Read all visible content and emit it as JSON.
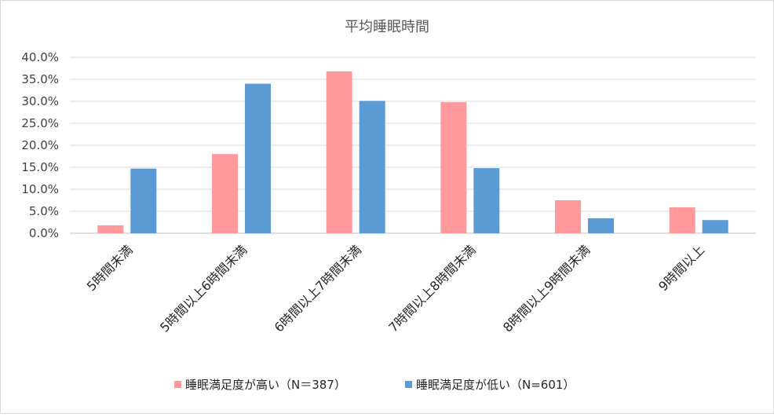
{
  "chart_data": {
    "type": "bar",
    "title": "平均睡眠時間",
    "categories": [
      "5時間未満",
      "5時間以上6時間未満",
      "6時間以上7時間未満",
      "7時間以上8時間未満",
      "8時間以上9時間未満",
      "9時間以上"
    ],
    "series": [
      {
        "name": "睡眠満足度が高い（N＝387）",
        "color": "#ff999c",
        "values": [
          1.8,
          18.0,
          36.8,
          29.8,
          7.5,
          5.9
        ]
      },
      {
        "name": "睡眠満足度が低い（N=601）",
        "color": "#5b9bd5",
        "values": [
          14.7,
          34.0,
          30.1,
          14.8,
          3.4,
          3.0
        ]
      }
    ],
    "yticks": [
      "0.0%",
      "5.0%",
      "10.0%",
      "15.0%",
      "20.0%",
      "25.0%",
      "30.0%",
      "35.0%",
      "40.0%"
    ],
    "ylim": [
      0,
      40
    ],
    "grid": true,
    "legend_position": "bottom"
  }
}
